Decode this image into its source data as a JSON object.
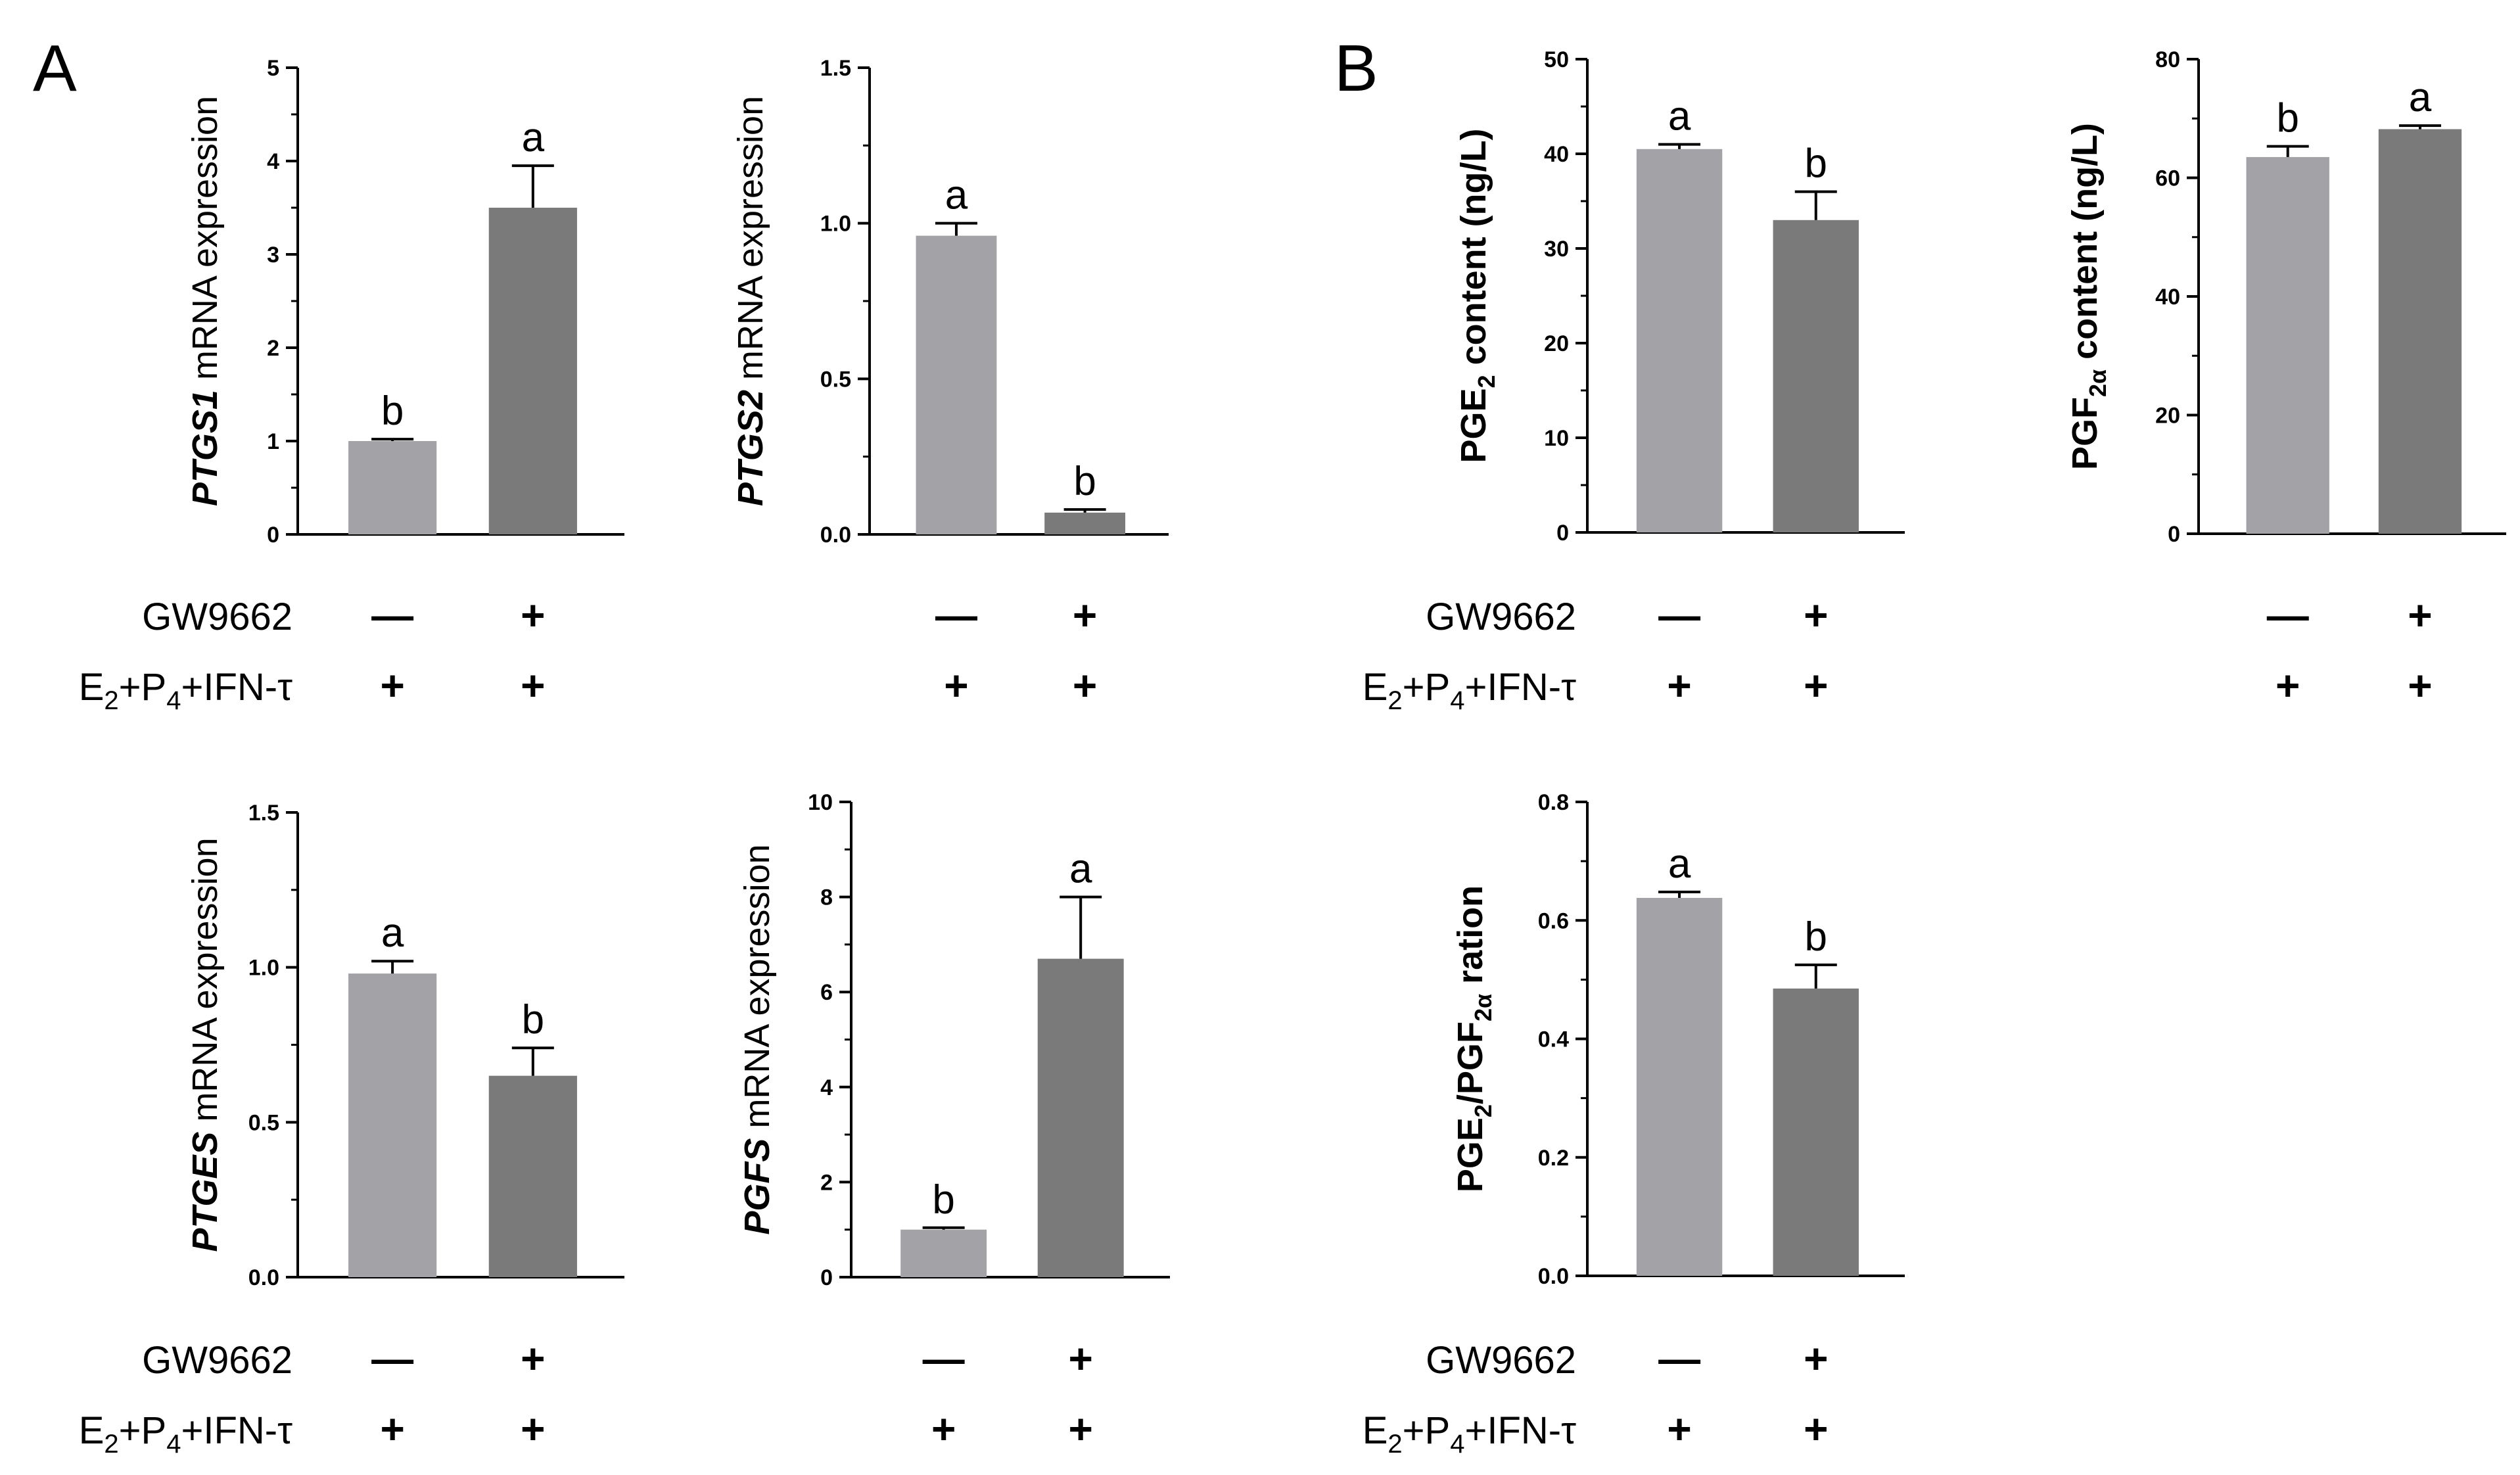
{
  "panel_labels": [
    "A",
    "B"
  ],
  "treatment_labels": {
    "gw": "GW9662",
    "e2_prefix": "E",
    "e2_sub": "2",
    "p4_prefix": "+P",
    "p4_sub": "4",
    "ifn": "+IFN-τ"
  },
  "colors": {
    "control": "#a3a3a7",
    "treated": "#7a7a7a",
    "axis": "#000000"
  },
  "chart_data": [
    {
      "id": "ptgs1",
      "type": "bar",
      "ylabel_italic": "PTGS1",
      "ylabel_rest": " mRNA expression",
      "ylim": [
        0,
        5
      ],
      "yticks": [
        0,
        1,
        2,
        3,
        4,
        5
      ],
      "ytick_labels": [
        "0",
        "1",
        "2",
        "3",
        "4",
        "5"
      ],
      "categories": [
        "GW9662 −",
        "GW9662 +"
      ],
      "values": [
        1.0,
        3.5
      ],
      "errors": [
        0.02,
        0.45
      ],
      "letters": [
        "b",
        "a"
      ],
      "gw_signs": [
        "—",
        "+"
      ],
      "e2_signs": [
        "+",
        "+"
      ]
    },
    {
      "id": "ptgs2",
      "type": "bar",
      "ylabel_italic": "PTGS2",
      "ylabel_rest": " mRNA expression",
      "ylim": [
        0,
        1.5
      ],
      "yticks": [
        0,
        0.5,
        1.0,
        1.5
      ],
      "ytick_labels": [
        "0.0",
        "0.5",
        "1.0",
        "1.5"
      ],
      "categories": [
        "GW9662 −",
        "GW9662 +"
      ],
      "values": [
        0.96,
        0.07
      ],
      "errors": [
        0.04,
        0.01
      ],
      "letters": [
        "a",
        "b"
      ],
      "gw_signs": [
        "—",
        "+"
      ],
      "e2_signs": [
        "+",
        "+"
      ]
    },
    {
      "id": "pge2",
      "type": "bar",
      "ylabel_pre": "PGE",
      "ylabel_sub": "2",
      "ylabel_post": " content (ng/L)",
      "ylim": [
        0,
        50
      ],
      "yticks": [
        0,
        10,
        20,
        30,
        40,
        50
      ],
      "ytick_labels": [
        "0",
        "10",
        "20",
        "30",
        "40",
        "50"
      ],
      "categories": [
        "GW9662 −",
        "GW9662 +"
      ],
      "values": [
        40.5,
        33.0
      ],
      "errors": [
        0.5,
        3.0
      ],
      "letters": [
        "a",
        "b"
      ],
      "gw_signs": [
        "—",
        "+"
      ],
      "e2_signs": [
        "+",
        "+"
      ]
    },
    {
      "id": "pgf2a",
      "type": "bar",
      "ylabel_pre": "PGF",
      "ylabel_sub": "2α",
      "ylabel_post": " content (ng/L)",
      "ylim": [
        0,
        80
      ],
      "yticks": [
        0,
        20,
        40,
        60,
        80
      ],
      "ytick_labels": [
        "0",
        "20",
        "40",
        "60",
        "80"
      ],
      "categories": [
        "GW9662 −",
        "GW9662 +"
      ],
      "values": [
        63.5,
        68.2
      ],
      "errors": [
        1.8,
        0.6
      ],
      "letters": [
        "b",
        "a"
      ],
      "gw_signs": [
        "—",
        "+"
      ],
      "e2_signs": [
        "+",
        "+"
      ]
    },
    {
      "id": "ptges",
      "type": "bar",
      "ylabel_italic": "PTGES",
      "ylabel_rest": " mRNA expression",
      "ylim": [
        0,
        1.5
      ],
      "yticks": [
        0,
        0.5,
        1.0,
        1.5
      ],
      "ytick_labels": [
        "0.0",
        "0.5",
        "1.0",
        "1.5"
      ],
      "categories": [
        "GW9662 −",
        "GW9662 +"
      ],
      "values": [
        0.98,
        0.65
      ],
      "errors": [
        0.04,
        0.09
      ],
      "letters": [
        "a",
        "b"
      ],
      "gw_signs": [
        "—",
        "+"
      ],
      "e2_signs": [
        "+",
        "+"
      ]
    },
    {
      "id": "pgfs",
      "type": "bar",
      "ylabel_italic": "PGFS",
      "ylabel_rest": " mRNA expression",
      "ylim": [
        0,
        10
      ],
      "yticks": [
        0,
        2,
        4,
        6,
        8,
        10
      ],
      "ytick_labels": [
        "0",
        "2",
        "4",
        "6",
        "8",
        "10"
      ],
      "categories": [
        "GW9662 −",
        "GW9662 +"
      ],
      "values": [
        1.0,
        6.7
      ],
      "errors": [
        0.04,
        1.3
      ],
      "letters": [
        "b",
        "a"
      ],
      "gw_signs": [
        "—",
        "+"
      ],
      "e2_signs": [
        "+",
        "+"
      ]
    },
    {
      "id": "ratio",
      "type": "bar",
      "ylabel_pre": "PGE",
      "ylabel_sub": "2",
      "ylabel_mid": "/PGF",
      "ylabel_sub2": "2α",
      "ylabel_post": " ration",
      "ylim": [
        0,
        0.8
      ],
      "yticks": [
        0,
        0.2,
        0.4,
        0.6,
        0.8
      ],
      "ytick_labels": [
        "0.0",
        "0.2",
        "0.4",
        "0.6",
        "0.8"
      ],
      "categories": [
        "GW9662 −",
        "GW9662 +"
      ],
      "values": [
        0.638,
        0.485
      ],
      "errors": [
        0.01,
        0.04
      ],
      "letters": [
        "a",
        "b"
      ],
      "gw_signs": [
        "—",
        "+"
      ],
      "e2_signs": [
        "+",
        "+"
      ]
    }
  ]
}
